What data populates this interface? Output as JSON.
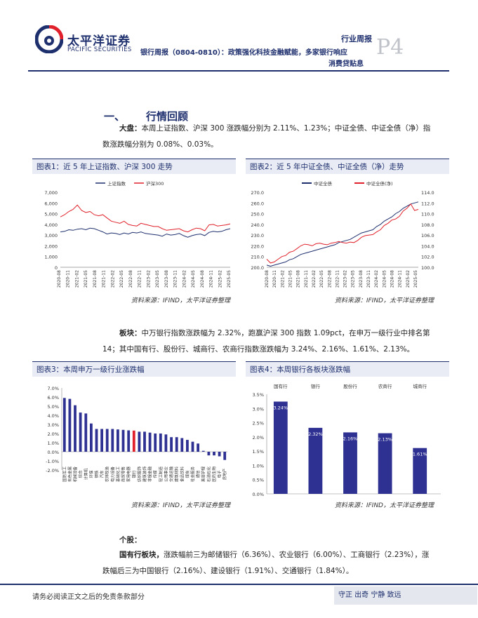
{
  "header": {
    "logo_cn": "太平洋证券",
    "logo_en": "PACIFIC SECURITIES",
    "tag": "行业周报",
    "title_line1": "银行周报（0804-0810）：政策强化科技金融赋能，多家银行响应",
    "title_line2": "消费贷贴息",
    "page": "P4"
  },
  "section": {
    "num": "一、",
    "title": "行情回顾"
  },
  "market": {
    "lead": "大盘：",
    "line1": "本周上证指数、沪深 300 涨跌幅分别为 2.11%、1.23%；中证全债、中证全债（净）指",
    "line2": "数涨跌幅分别为 0.08%、0.03%。"
  },
  "sector": {
    "lead": "板块：",
    "line1": "中万银行指数涨跌幅为 2.32%，跑赢沪深 300 指数 1.09pct，在申万一级行业中排名第",
    "line2": "14；其中国有行、股份行、城商行、农商行指数涨跌幅为 3.24%、2.16%、1.61%、2.13%。"
  },
  "stocks": {
    "heading": "个股：",
    "lead": "国有行板块，",
    "line1": "涨跌幅前三为邮储银行（6.36%）、农业银行（6.00%）、工商银行（2.23%），涨",
    "line2": "跌幅后三为中国银行（2.16%）、建设银行（1.91%）、交通银行（1.84%）。"
  },
  "source_text": "资料来源：IFIND，太平洋证券整理",
  "footer": {
    "disclaimer": "请务必阅读正文之后的免责条款部分",
    "motto": "守正 出奇 宁静 致远"
  },
  "colors": {
    "navy": "#1e2f6e",
    "red": "#e0202a",
    "bar": "#2e3192"
  },
  "chart_data": [
    {
      "id": "fig1",
      "type": "line",
      "title": "图表1：近 5 年上证指数、沪深 300 走势",
      "series": [
        {
          "name": "上证指数",
          "values": [
            3300,
            3350,
            3500,
            3450,
            3550,
            3600,
            3500,
            3650,
            3600,
            3450,
            3300,
            3100,
            3200,
            3150,
            3050,
            3200,
            3100,
            3250,
            3200,
            3300,
            3150,
            3100,
            3050,
            3000,
            2900,
            3100,
            3000,
            3050,
            3150,
            2950,
            2800,
            2950,
            3050,
            3100,
            2950,
            3250,
            3350,
            3300,
            3350,
            3500,
            3600
          ]
        },
        {
          "name": "沪深300",
          "values": [
            4700,
            4900,
            5200,
            5400,
            5800,
            5300,
            5100,
            5200,
            4900,
            4800,
            4900,
            4600,
            4300,
            4200,
            4100,
            4300,
            4000,
            3900,
            3850,
            4100,
            4000,
            3900,
            3800,
            3800,
            3600,
            3450,
            3500,
            3550,
            3600,
            3400,
            3300,
            3500,
            3650,
            3600,
            3400,
            3950,
            4000,
            3850,
            3900,
            3950,
            4050
          ]
        }
      ],
      "x_ticks": [
        "2020-08",
        "2020-11",
        "2021-02",
        "2021-05",
        "2021-08",
        "2021-11",
        "2022-02",
        "2022-05",
        "2022-08",
        "2022-11",
        "2023-02",
        "2023-05",
        "2023-08",
        "2023-11",
        "2024-02",
        "2024-05",
        "2024-08",
        "2024-11",
        "2025-02",
        "2025-05"
      ],
      "y_ticks": [
        "0",
        "1,000",
        "2,000",
        "3,000",
        "4,000",
        "5,000",
        "6,000",
        "7,000"
      ],
      "ylim": [
        0,
        7000
      ]
    },
    {
      "id": "fig2",
      "type": "line",
      "title": "图表2：近 5 年中证全债、中证全债（净）走势",
      "series": [
        {
          "name": "中证全债",
          "axis": "left",
          "values": [
            202,
            201,
            202,
            203,
            204,
            205,
            207,
            208,
            210,
            212,
            213,
            214,
            215,
            216,
            217,
            218,
            219,
            220,
            221,
            223,
            224,
            225,
            226,
            228,
            230,
            232,
            233,
            234,
            235,
            238,
            240,
            243,
            245,
            247,
            250,
            252,
            255,
            257,
            259,
            260,
            261
          ]
        },
        {
          "name": "中证全债(净)",
          "axis": "right",
          "values": [
            101.5,
            100.8,
            101.0,
            101.5,
            102.0,
            102.2,
            102.8,
            103.0,
            103.5,
            104.0,
            104.3,
            104.2,
            104.0,
            104.4,
            104.5,
            104.3,
            104.2,
            104.5,
            104.6,
            104.8,
            104.6,
            104.5,
            104.7,
            104.6,
            105.0,
            105.6,
            105.9,
            106.0,
            106.1,
            106.6,
            107.0,
            107.8,
            108.2,
            108.8,
            109.0,
            109.5,
            110.5,
            111.0,
            111.8,
            110.6,
            110.8
          ]
        }
      ],
      "x_ticks": [
        "2020-08",
        "2020-11",
        "2021-02",
        "2021-05",
        "2021-08",
        "2021-11",
        "2022-02",
        "2022-05",
        "2022-08",
        "2022-11",
        "2023-02",
        "2023-05",
        "2023-08",
        "2023-11",
        "2024-02",
        "2024-05",
        "2024-08",
        "2024-11",
        "2025-02",
        "2025-05"
      ],
      "y_ticks_left": [
        "200.0",
        "210.0",
        "220.0",
        "230.0",
        "240.0",
        "250.0",
        "260.0",
        "270.0"
      ],
      "y_ticks_right": [
        "100.0",
        "102.0",
        "104.0",
        "106.0",
        "108.0",
        "110.0",
        "112.0",
        "114.0"
      ],
      "ylim_left": [
        200,
        270
      ],
      "ylim_right": [
        100,
        114
      ]
    },
    {
      "id": "fig3",
      "type": "bar",
      "title": "图表3：本周申万一级行业涨跌幅",
      "categories": [
        "国防军工",
        "有色金属",
        "机械设备",
        "综合",
        "计算机",
        "环保",
        "钢铁",
        "汽车",
        "农林牧渔",
        "电力设备",
        "基础化工",
        "商贸零售",
        "家用电器",
        "银行",
        "纺织服饰",
        "建筑装饰",
        "非银金融",
        "传媒",
        "轻工制造",
        "公用事业",
        "交通运输",
        "建筑材料",
        "食品饮料",
        "煤炭",
        "社会服务",
        "通信",
        "美容护理",
        "石油石化",
        "医药生物",
        "电子",
        "房地产"
      ],
      "values": [
        5.9,
        5.8,
        5.1,
        4.3,
        4.2,
        3.1,
        2.5,
        2.5,
        2.5,
        2.5,
        2.45,
        2.4,
        2.35,
        2.32,
        2.2,
        2.2,
        2.1,
        2.0,
        2.0,
        1.9,
        1.6,
        1.6,
        1.5,
        1.3,
        1.1,
        0.9,
        0.1,
        -0.4,
        -0.4,
        -0.5,
        -0.9
      ],
      "highlight": "银行",
      "y_ticks": [
        "-2.0%",
        "-1.0%",
        "0.0%",
        "1.0%",
        "2.0%",
        "3.0%",
        "4.0%",
        "5.0%",
        "6.0%",
        "7.0%"
      ],
      "ylim": [
        -2,
        7
      ]
    },
    {
      "id": "fig4",
      "type": "bar",
      "title": "图表4：本周银行各板块涨跌幅",
      "categories": [
        "国有行",
        "银行",
        "股份行",
        "农商行",
        "城商行"
      ],
      "values": [
        3.24,
        2.32,
        2.16,
        2.13,
        1.61
      ],
      "labels": [
        "3.24%",
        "2.32%",
        "2.16%",
        "2.13%",
        "1.61%"
      ],
      "y_ticks": [
        "0.0%",
        "0.5%",
        "1.0%",
        "1.5%",
        "2.0%",
        "2.5%",
        "3.0%",
        "3.5%"
      ],
      "ylim": [
        0,
        3.5
      ]
    }
  ]
}
